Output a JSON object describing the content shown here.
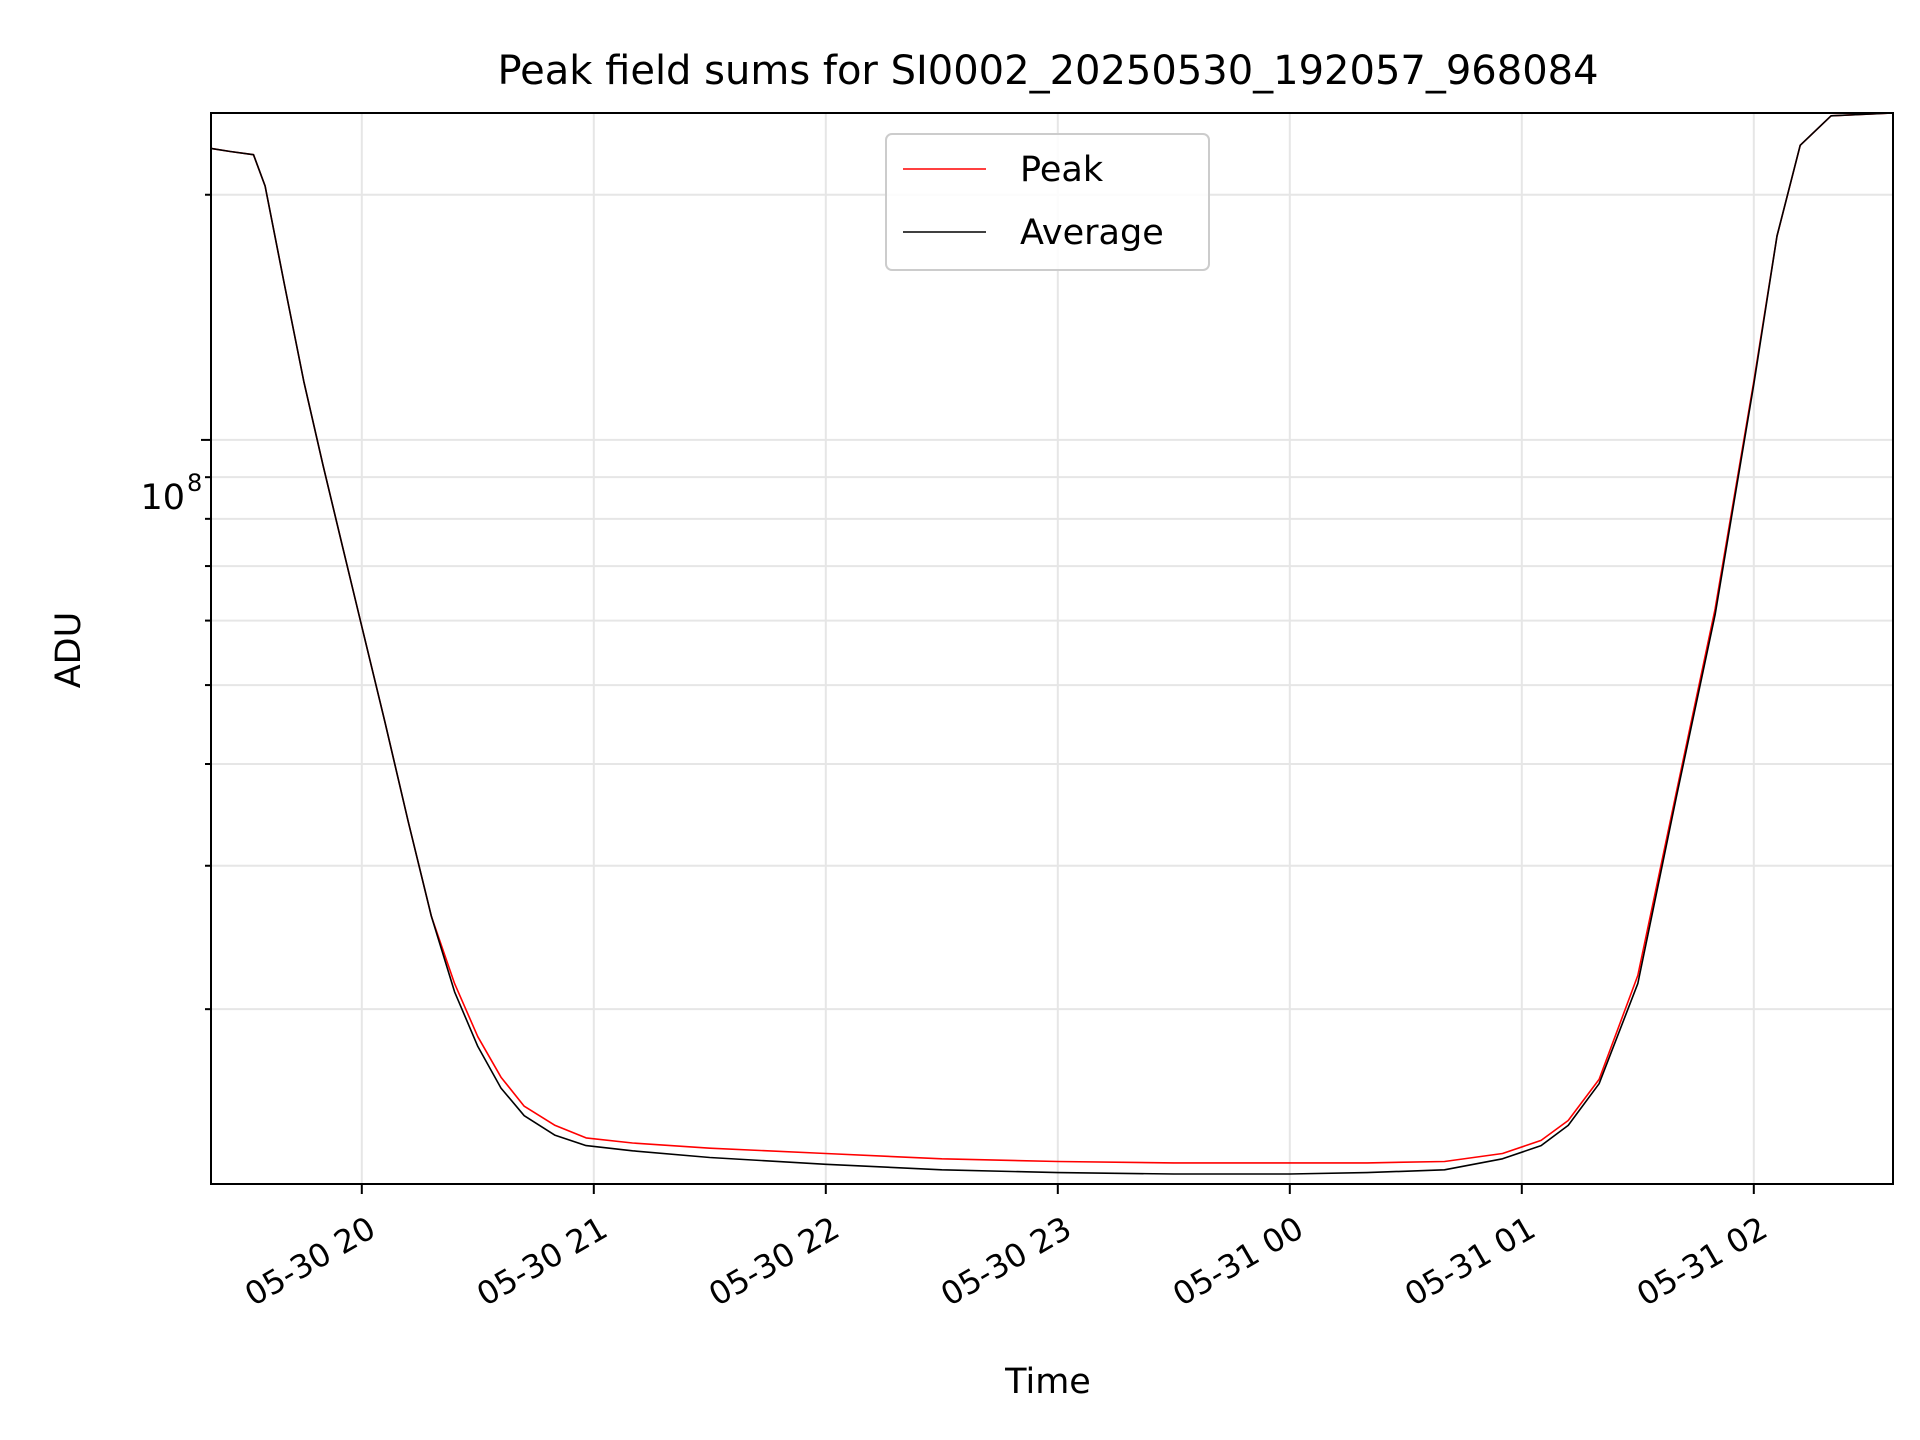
{
  "chart_data": {
    "type": "line",
    "title": "Peak field sums for SI0002_20250530_192057_968084",
    "xlabel": "Time",
    "ylabel": "ADU",
    "yscale": "log",
    "ytick_labels": [
      {
        "base": "10",
        "exp": "8",
        "value": 100000000
      }
    ],
    "xlim": [
      "2025-05-30 19:21",
      "2025-05-31 02:36"
    ],
    "ylim": [
      12200000,
      252000000
    ],
    "grid": true,
    "legend": {
      "location": "upper center"
    },
    "x_ticks": [
      {
        "date": "2025-05-30 20:00",
        "label": "05-30 20"
      },
      {
        "date": "2025-05-30 21:00",
        "label": "05-30 21"
      },
      {
        "date": "2025-05-30 22:00",
        "label": "05-30 22"
      },
      {
        "date": "2025-05-30 23:00",
        "label": "05-30 23"
      },
      {
        "date": "2025-05-31 00:00",
        "label": "05-31 00"
      },
      {
        "date": "2025-05-31 01:00",
        "label": "05-31 01"
      },
      {
        "date": "2025-05-31 02:00",
        "label": "05-31 02"
      }
    ],
    "series": [
      {
        "name": "Peak",
        "color": "#ff0000",
        "x": [
          "2025-05-30 19:21",
          "2025-05-30 19:26",
          "2025-05-30 19:32",
          "2025-05-30 19:35",
          "2025-05-30 19:40",
          "2025-05-30 19:45",
          "2025-05-30 19:50",
          "2025-05-30 19:55",
          "2025-05-30 20:00",
          "2025-05-30 20:06",
          "2025-05-30 20:12",
          "2025-05-30 20:18",
          "2025-05-30 20:24",
          "2025-05-30 20:30",
          "2025-05-30 20:36",
          "2025-05-30 20:42",
          "2025-05-30 20:50",
          "2025-05-30 20:58",
          "2025-05-30 21:10",
          "2025-05-30 21:30",
          "2025-05-30 22:00",
          "2025-05-30 22:30",
          "2025-05-30 23:00",
          "2025-05-30 23:30",
          "2025-05-31 00:00",
          "2025-05-31 00:20",
          "2025-05-31 00:40",
          "2025-05-31 00:55",
          "2025-05-31 01:05",
          "2025-05-31 01:12",
          "2025-05-31 01:20",
          "2025-05-31 01:30",
          "2025-05-31 01:40",
          "2025-05-31 01:50",
          "2025-05-31 02:00",
          "2025-05-31 02:06",
          "2025-05-31 02:12",
          "2025-05-31 02:20",
          "2025-05-31 02:36"
        ],
        "y": [
          228000000,
          226000000,
          224000000,
          205000000,
          155000000,
          118000000,
          93000000,
          74000000,
          59000000,
          45000000,
          34000000,
          26000000,
          21500000,
          18500000,
          16500000,
          15200000,
          14400000,
          13900000,
          13700000,
          13500000,
          13300000,
          13100000,
          13000000,
          12950000,
          12950000,
          12950000,
          13000000,
          13300000,
          13800000,
          14600000,
          16400000,
          22000000,
          37000000,
          62000000,
          118000000,
          178000000,
          230000000,
          250000000,
          252000000
        ]
      },
      {
        "name": "Average",
        "color": "#000000",
        "x": [
          "2025-05-30 19:21",
          "2025-05-30 19:26",
          "2025-05-30 19:32",
          "2025-05-30 19:35",
          "2025-05-30 19:40",
          "2025-05-30 19:45",
          "2025-05-30 19:50",
          "2025-05-30 19:55",
          "2025-05-30 20:00",
          "2025-05-30 20:06",
          "2025-05-30 20:12",
          "2025-05-30 20:18",
          "2025-05-30 20:24",
          "2025-05-30 20:30",
          "2025-05-30 20:36",
          "2025-05-30 20:42",
          "2025-05-30 20:50",
          "2025-05-30 20:58",
          "2025-05-30 21:10",
          "2025-05-30 21:30",
          "2025-05-30 22:00",
          "2025-05-30 22:30",
          "2025-05-30 23:00",
          "2025-05-30 23:30",
          "2025-05-31 00:00",
          "2025-05-31 00:20",
          "2025-05-31 00:40",
          "2025-05-31 00:55",
          "2025-05-31 01:05",
          "2025-05-31 01:12",
          "2025-05-31 01:20",
          "2025-05-31 01:30",
          "2025-05-31 01:40",
          "2025-05-31 01:50",
          "2025-05-31 02:00",
          "2025-05-31 02:06",
          "2025-05-31 02:12",
          "2025-05-31 02:20",
          "2025-05-31 02:36"
        ],
        "y": [
          228000000,
          226000000,
          224000000,
          205000000,
          155000000,
          118000000,
          93000000,
          74000000,
          59000000,
          45000000,
          34000000,
          26000000,
          21000000,
          18000000,
          16000000,
          14800000,
          14000000,
          13600000,
          13400000,
          13150000,
          12900000,
          12700000,
          12600000,
          12550000,
          12550000,
          12600000,
          12700000,
          13100000,
          13600000,
          14400000,
          16200000,
          21500000,
          36500000,
          61000000,
          117000000,
          178000000,
          230000000,
          250000000,
          252000000
        ]
      }
    ]
  }
}
